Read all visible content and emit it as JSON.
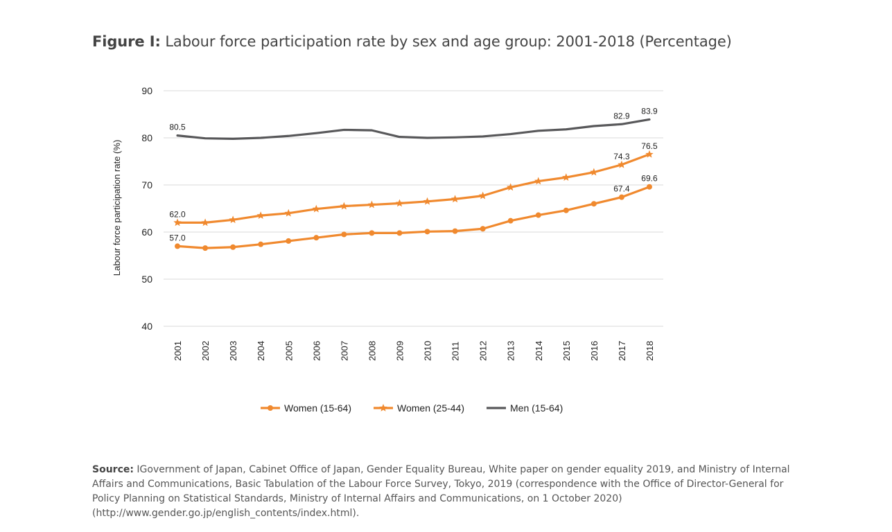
{
  "figure": {
    "label": "Figure I:",
    "title": "Labour force participation rate by sex and age group: 2001-2018 (Percentage)"
  },
  "source": {
    "label": "Source:",
    "text": "IGovernment of Japan, Cabinet Office of Japan, Gender Equality Bureau, White paper on gender equality 2019, and Ministry of Internal Affairs and Communications, Basic Tabulation of the Labour Force Survey, Tokyo, 2019 (correspondence with the Office of Director-General for Policy Planning on Statistical Standards, Ministry of Internal Affairs and Communications, on 1 October 2020) (http://www.gender.go.jp/english_contents/index.html)."
  },
  "chart_data": {
    "type": "line",
    "title": "Labour force participation rate by sex and age group: 2001-2018 (Percentage)",
    "xlabel": "",
    "ylabel": "Labour force participation rate (%)",
    "ylim": [
      40,
      90
    ],
    "yticks": [
      40,
      50,
      60,
      70,
      80,
      90
    ],
    "grid": true,
    "legend_position": "bottom",
    "x": [
      "2001",
      "2002",
      "2003",
      "2004",
      "2005",
      "2006",
      "2007",
      "2008",
      "2009",
      "2010",
      "2011",
      "2012",
      "2013",
      "2014",
      "2015",
      "2016",
      "2017",
      "2018"
    ],
    "series": [
      {
        "name": "Women (15-64)",
        "color": "#F0892E",
        "marker": "circle",
        "values": [
          57.0,
          56.6,
          56.8,
          57.4,
          58.1,
          58.8,
          59.5,
          59.8,
          59.8,
          60.1,
          60.2,
          60.7,
          62.4,
          63.6,
          64.6,
          66.0,
          67.4,
          69.6
        ],
        "labels": {
          "0": "57.0",
          "16": "67.4",
          "17": "69.6"
        }
      },
      {
        "name": "Women (25-44)",
        "color": "#F0892E",
        "marker": "star",
        "values": [
          62.0,
          62.0,
          62.6,
          63.5,
          64.0,
          64.9,
          65.5,
          65.8,
          66.1,
          66.5,
          67.0,
          67.7,
          69.5,
          70.8,
          71.6,
          72.7,
          74.3,
          76.5
        ],
        "labels": {
          "0": "62.0",
          "16": "74.3",
          "17": "76.5"
        }
      },
      {
        "name": "Men (15-64)",
        "color": "#58585A",
        "marker": "none",
        "values": [
          80.5,
          79.9,
          79.8,
          80.0,
          80.4,
          81.0,
          81.7,
          81.6,
          80.2,
          80.0,
          80.1,
          80.3,
          80.8,
          81.5,
          81.8,
          82.5,
          82.9,
          83.9
        ],
        "labels": {
          "0": "80.5",
          "16": "82.9",
          "17": "83.9"
        }
      }
    ]
  }
}
